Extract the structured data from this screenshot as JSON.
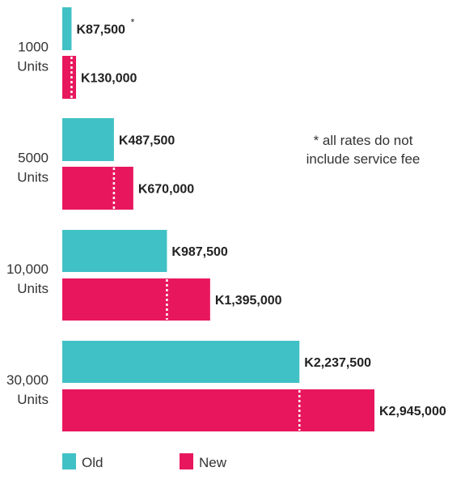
{
  "chart_data": {
    "type": "bar",
    "orientation": "horizontal",
    "categories": [
      [
        "1000",
        "Units"
      ],
      [
        "5000",
        "Units"
      ],
      [
        "10,000",
        "Units"
      ],
      [
        "30,000",
        "Units"
      ]
    ],
    "series": [
      {
        "name": "Old",
        "color": "#40c1c6",
        "values": [
          87500,
          487500,
          987500,
          2237500
        ],
        "labels": [
          "K87,500",
          "K487,500",
          "K987,500",
          "K2,237,500"
        ]
      },
      {
        "name": "New",
        "color": "#e8175d",
        "values": [
          130000,
          670000,
          1395000,
          2945000
        ],
        "labels": [
          "K130,000",
          "K670,000",
          "K1,395,000",
          "K2,945,000"
        ]
      }
    ],
    "first_label_marker": "*",
    "note": [
      "* all rates do not",
      "include service fee"
    ],
    "legend_position": "bottom-left",
    "grid": false
  }
}
